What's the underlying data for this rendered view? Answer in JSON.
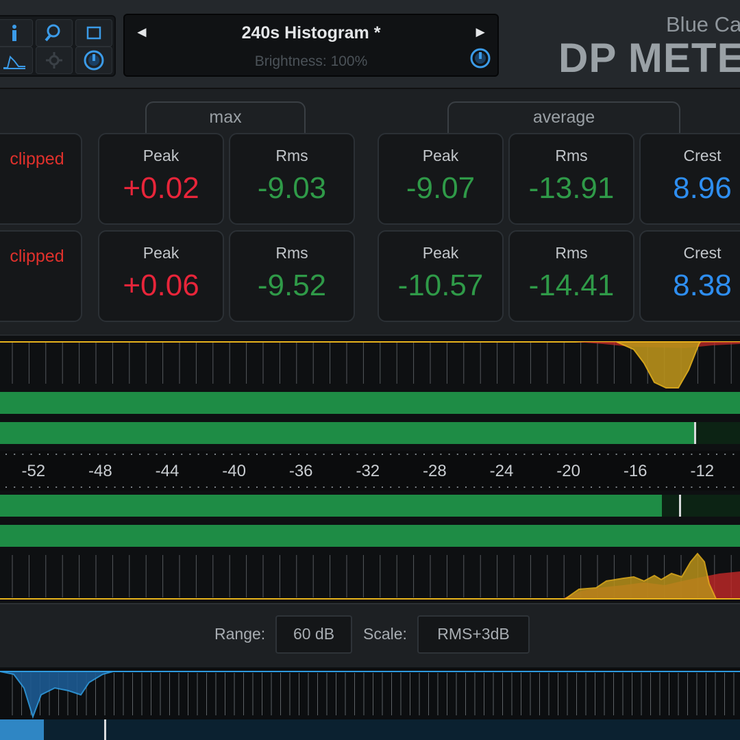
{
  "header": {
    "preset_name": "240s Histogram *",
    "brightness": "Brightness: 100%",
    "prev_arrow": "◄",
    "next_arrow": "►",
    "brand_top": "Blue Ca",
    "brand_main": "DP METE"
  },
  "groups": {
    "max": "max",
    "average": "average"
  },
  "channels": [
    {
      "clipped": "clipped",
      "max_peak_label": "Peak",
      "max_peak": "+0.02",
      "max_rms_label": "Rms",
      "max_rms": "-9.03",
      "avg_peak_label": "Peak",
      "avg_peak": "-9.07",
      "avg_rms_label": "Rms",
      "avg_rms": "-13.91",
      "crest_label": "Crest",
      "crest": "8.96"
    },
    {
      "clipped": "clipped",
      "max_peak_label": "Peak",
      "max_peak": "+0.06",
      "max_rms_label": "Rms",
      "max_rms": "-9.52",
      "avg_peak_label": "Peak",
      "avg_peak": "-10.57",
      "avg_rms_label": "Rms",
      "avg_rms": "-14.41",
      "crest_label": "Crest",
      "crest": "8.38"
    }
  ],
  "meter": {
    "scale_labels": [
      "-52",
      "-48",
      "-44",
      "-40",
      "-36",
      "-32",
      "-28",
      "-24",
      "-20",
      "-16",
      "-12",
      "-"
    ],
    "bars": [
      {
        "name": "ch1-peak",
        "level_db": 0
      },
      {
        "name": "ch1-rms",
        "level_db": -12.5,
        "hold_db": -12.5
      },
      {
        "name": "ch2-rms",
        "level_db": -14.4,
        "hold_db": -13.4
      },
      {
        "name": "ch2-peak",
        "level_db": -9.5
      }
    ]
  },
  "controls": {
    "range_label": "Range:",
    "range_value": "60 dB",
    "scale_label": "Scale:",
    "scale_value": "RMS+3dB"
  },
  "colors": {
    "peak_red": "#e8253a",
    "rms_green": "#2f9a48",
    "crest_blue": "#2e8ef0",
    "bar_green": "#1e8c45",
    "histogram_yellow": "#e8b31c",
    "histogram_red": "#c42828",
    "accent_blue": "#2f9be0"
  }
}
